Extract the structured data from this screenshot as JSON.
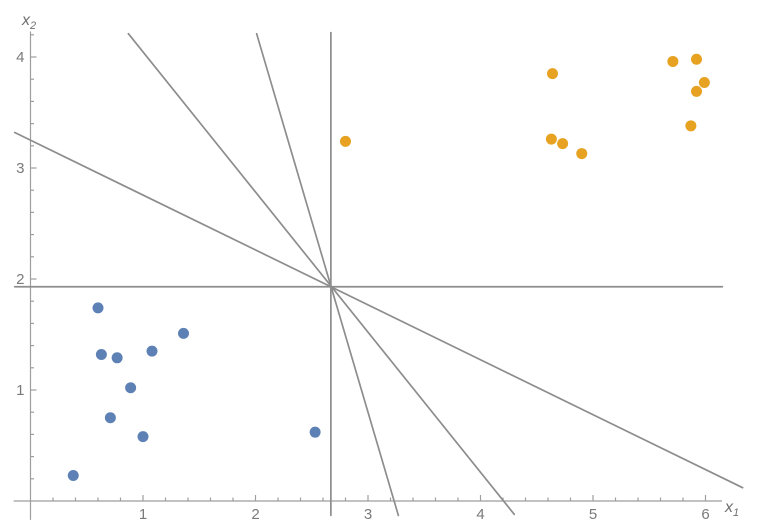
{
  "chart_data": {
    "type": "scatter",
    "title": "",
    "xlabel": {
      "base": "x",
      "sub": "1"
    },
    "ylabel": {
      "base": "x",
      "sub": "2"
    },
    "xlim": [
      -0.15,
      6.35
    ],
    "ylim": [
      -0.18,
      4.25
    ],
    "x_ticks": [
      1,
      2,
      3,
      4,
      5,
      6
    ],
    "y_ticks": [
      1,
      2,
      3,
      4
    ],
    "minor_tick_step": 0.2,
    "grid": false,
    "legend": false,
    "series": [
      {
        "name": "cluster-blue",
        "color": "#5e81b5",
        "points": [
          [
            0.6,
            1.74
          ],
          [
            1.36,
            1.51
          ],
          [
            0.63,
            1.32
          ],
          [
            0.77,
            1.29
          ],
          [
            1.08,
            1.35
          ],
          [
            0.89,
            1.02
          ],
          [
            0.71,
            0.75
          ],
          [
            1.0,
            0.58
          ],
          [
            0.38,
            0.23
          ],
          [
            2.53,
            0.62
          ]
        ]
      },
      {
        "name": "cluster-orange",
        "color": "#e6a220",
        "points": [
          [
            2.8,
            3.24
          ],
          [
            4.64,
            3.85
          ],
          [
            4.63,
            3.26
          ],
          [
            4.73,
            3.22
          ],
          [
            4.9,
            3.13
          ],
          [
            5.71,
            3.96
          ],
          [
            5.92,
            3.98
          ],
          [
            5.99,
            3.77
          ],
          [
            5.92,
            3.69
          ],
          [
            5.87,
            3.38
          ]
        ]
      }
    ],
    "separator_lines": {
      "color": "#8d8d8d",
      "common_point": [
        2.67,
        1.93
      ],
      "segments": [
        {
          "name": "line-horizontal",
          "from": [
            -0.14,
            1.93
          ],
          "to": [
            6.15,
            1.93
          ]
        },
        {
          "name": "line-vertical",
          "from": [
            2.67,
            4.22
          ],
          "to": [
            2.67,
            -0.13
          ]
        },
        {
          "name": "line-slope-0.5",
          "from": [
            -0.14,
            3.32
          ],
          "to": [
            6.33,
            0.12
          ]
        },
        {
          "name": "line-slope-1.26",
          "from": [
            0.87,
            4.21
          ],
          "to": [
            4.3,
            -0.12
          ]
        },
        {
          "name": "line-slope-3.47",
          "from": [
            2.01,
            4.21
          ],
          "to": [
            3.27,
            -0.13
          ]
        }
      ]
    },
    "axes": {
      "color": "#9e9e9e",
      "tick_label_color": "#7a7a7a",
      "tick_label_size": 15
    }
  }
}
